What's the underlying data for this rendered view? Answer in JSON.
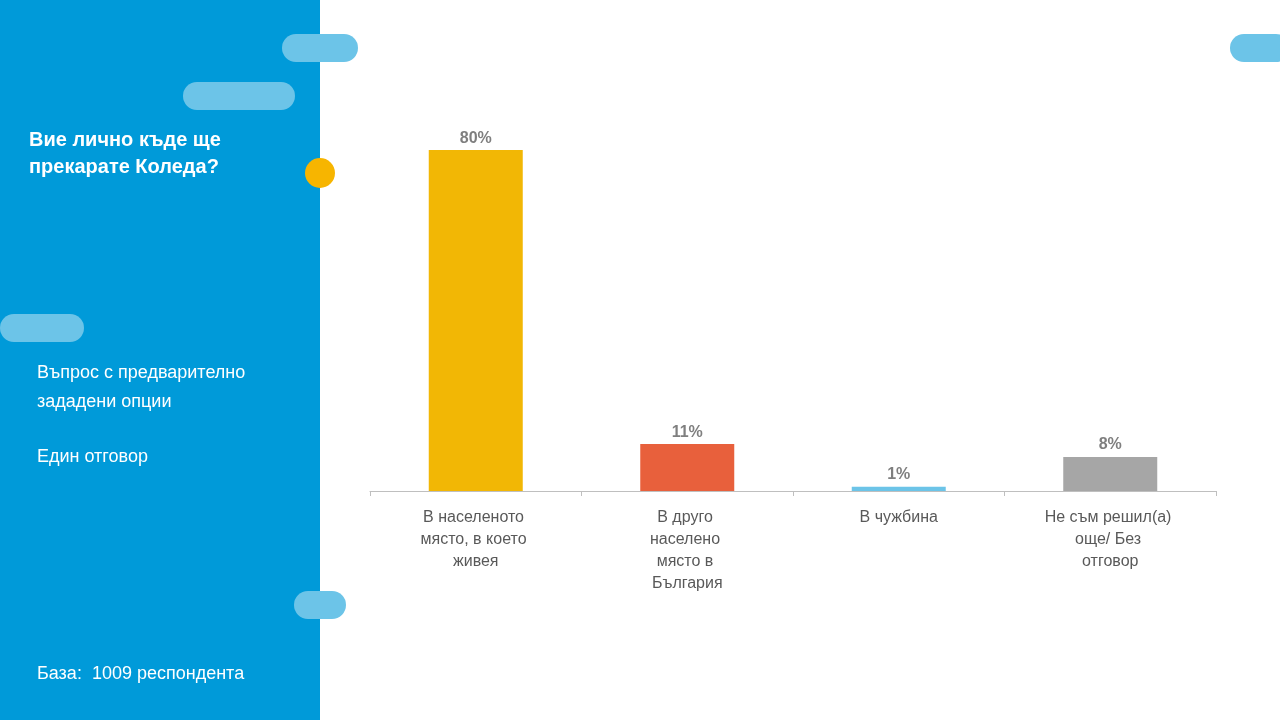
{
  "chart_data": {
    "type": "bar",
    "title": "Вие лично къде ще прекарате Коледа?",
    "subtitle": "Въпрос с предварително зададени опции",
    "annotations": [
      "Един отговор",
      "База:  1009 респондента"
    ],
    "categories": [
      "В населеното място, в което живея",
      "В друго населено място в България",
      "В чужбина",
      "Не съм решил(а) още/ Без отговор"
    ],
    "values": [
      80,
      11,
      1,
      8
    ],
    "colors": [
      "#f2b705",
      "#e8603c",
      "#6cc4e8",
      "#a6a6a6"
    ],
    "value_labels": [
      "80%",
      "11%",
      "1%",
      "8%"
    ]
  }
}
